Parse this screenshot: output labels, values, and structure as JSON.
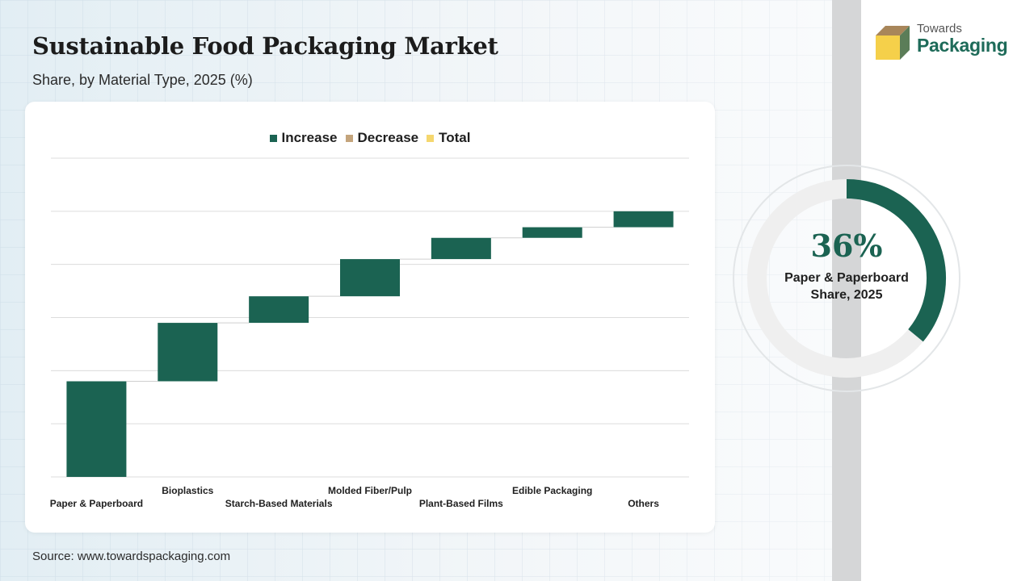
{
  "header": {
    "title": "Sustainable Food Packaging Market",
    "subtitle": "Share, by Material Type, 2025 (%)"
  },
  "legend": {
    "items": [
      {
        "label": "Increase",
        "color": "#1b6352"
      },
      {
        "label": "Decrease",
        "color": "#c4a47c"
      },
      {
        "label": "Total",
        "color": "#f5d76e"
      }
    ]
  },
  "chart_data": {
    "type": "bar",
    "subtype": "waterfall",
    "categories": [
      "Paper & Paperboard",
      "Bioplastics",
      "Starch-Based Materials",
      "Molded Fiber/Pulp",
      "Plant-Based Films",
      "Edible Packaging",
      "Others"
    ],
    "values": [
      36,
      22,
      10,
      14,
      8,
      4,
      6
    ],
    "ylim": [
      0,
      120
    ],
    "grid": true,
    "legend_position": "top",
    "colors": {
      "increase": "#1b6352",
      "decrease": "#c4a47c",
      "total": "#f5d76e"
    }
  },
  "highlight": {
    "value": "36%",
    "label": "Paper & Paperboard Share, 2025",
    "fraction": 0.36,
    "colors": {
      "fill": "#1b6352",
      "track": "#efefef"
    }
  },
  "logo": {
    "line1": "Towards",
    "line2": "Packaging"
  },
  "footer": {
    "source": "Source: www.towardspackaging.com"
  }
}
